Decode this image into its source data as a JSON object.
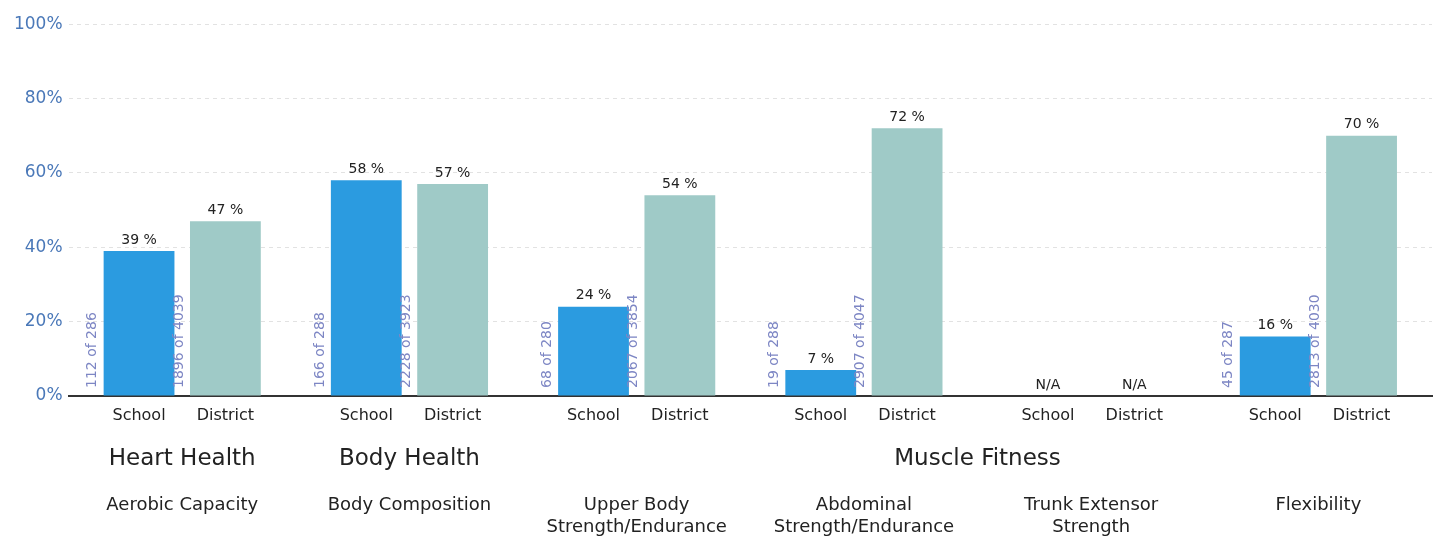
{
  "chart_data": {
    "type": "bar",
    "categories": [
      "Aerobic Capacity",
      "Body Composition",
      "Upper Body Strength/Endurance",
      "Abdominal Strength/Endurance",
      "Trunk Extensor Strength",
      "Flexibility"
    ],
    "series": [
      {
        "name": "School",
        "color": "#2b9be0",
        "values": [
          39,
          58,
          24,
          7,
          null,
          16
        ],
        "value_labels": [
          "39 %",
          "58 %",
          "24 %",
          "7 %",
          "N/A",
          "16 %"
        ]
      },
      {
        "name": "District",
        "color": "#9fcac7",
        "values": [
          47,
          57,
          54,
          72,
          null,
          70
        ],
        "value_labels": [
          "47 %",
          "57 %",
          "54 %",
          "72 %",
          "N/A",
          "70 %"
        ]
      }
    ],
    "ylim": [
      0,
      100
    ],
    "yticks": [
      {
        "value": 0,
        "label": "0%"
      },
      {
        "value": 20,
        "label": "20%"
      },
      {
        "value": 40,
        "label": "40%"
      },
      {
        "value": 60,
        "label": "60%"
      },
      {
        "value": 80,
        "label": "80%"
      },
      {
        "value": 100,
        "label": "100%"
      }
    ],
    "grid": "y",
    "legend": false,
    "annotations": [
      "Heart Health",
      "Body Health",
      "Muscle Fitness",
      "112 of 286",
      "1896 of 4039",
      "166 of 288",
      "2228 of 3923",
      "68 of 280",
      "2067 of 3854",
      "19 of 288",
      "2907 of 4047",
      "45 of 287",
      "2813 of 4030"
    ]
  }
}
